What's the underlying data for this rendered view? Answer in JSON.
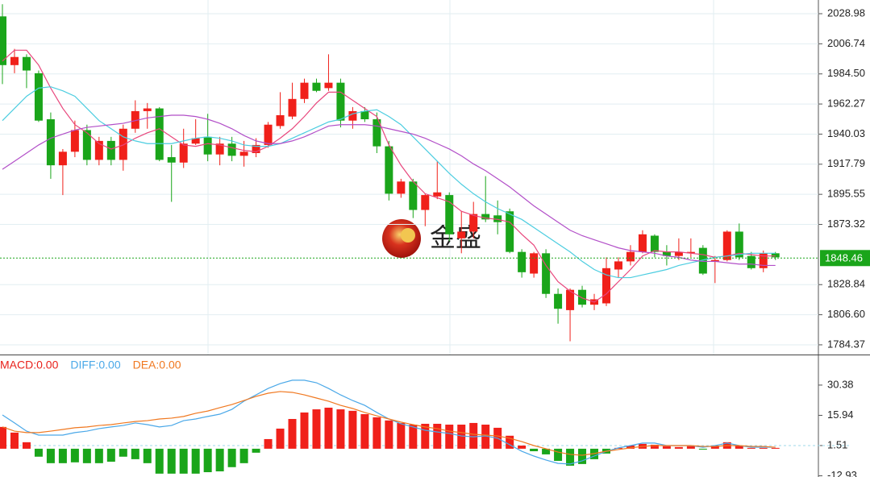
{
  "chart_data": [
    {
      "type": "candlestick",
      "up_color": "#f0201a",
      "down_color": "#1aa51a",
      "open": [
        2027,
        1991,
        1997,
        1985,
        1951,
        1917,
        1927,
        1943,
        1921,
        1935,
        1921,
        1944,
        1957,
        1959,
        1923,
        1919,
        1933,
        1938,
        1925,
        1933,
        1924,
        1926,
        1932,
        1946,
        1953,
        1966,
        1978,
        1974,
        1978,
        1950,
        1957,
        1951,
        1931,
        1896,
        1905,
        1884,
        1894,
        1895,
        1863,
        1868,
        1881,
        1880,
        1883,
        1853,
        1837,
        1852,
        1822,
        1810,
        1825,
        1814,
        1815,
        1840,
        1846,
        1853,
        1865,
        1853,
        1850,
        1852,
        1856,
        1846,
        1847,
        1868,
        1850,
        1841,
        1852
      ],
      "high": [
        2036,
        2003,
        1999,
        1987,
        1956,
        1929,
        1950,
        1947,
        1938,
        1938,
        1947,
        1965,
        1963,
        1960,
        1932,
        1944,
        1951,
        1955,
        1938,
        1938,
        1935,
        1937,
        1949,
        1971,
        1978,
        1981,
        1981,
        1999,
        1981,
        1960,
        1960,
        1956,
        1935,
        1907,
        1907,
        1896,
        1920,
        1897,
        1883,
        1890,
        1909,
        1891,
        1885,
        1855,
        1853,
        1855,
        1826,
        1826,
        1828,
        1822,
        1849,
        1849,
        1858,
        1869,
        1866,
        1858,
        1863,
        1863,
        1858,
        1850,
        1869,
        1874,
        1853,
        1854,
        1853
      ],
      "low": [
        1977,
        1985,
        1974,
        1949,
        1907,
        1895,
        1923,
        1917,
        1917,
        1917,
        1913,
        1941,
        1944,
        1920,
        1890,
        1915,
        1932,
        1920,
        1917,
        1920,
        1916,
        1923,
        1930,
        1944,
        1951,
        1963,
        1971,
        1972,
        1945,
        1944,
        1949,
        1926,
        1891,
        1893,
        1878,
        1872,
        1892,
        1861,
        1852,
        1863,
        1875,
        1866,
        1852,
        1834,
        1834,
        1819,
        1800,
        1787,
        1812,
        1810,
        1813,
        1834,
        1843,
        1852,
        1849,
        1843,
        1847,
        1849,
        1836,
        1830,
        1846,
        1847,
        1840,
        1838,
        1847
      ],
      "close": [
        1991,
        1997,
        1987,
        1950,
        1917,
        1927,
        1943,
        1921,
        1935,
        1921,
        1944,
        1957,
        1959,
        1921,
        1919,
        1933,
        1937,
        1925,
        1933,
        1924,
        1927,
        1932,
        1947,
        1954,
        1966,
        1978,
        1972,
        1978,
        1950,
        1957,
        1951,
        1931,
        1896,
        1905,
        1884,
        1895,
        1897,
        1866,
        1868,
        1881,
        1877,
        1875,
        1853,
        1838,
        1852,
        1822,
        1811,
        1825,
        1814,
        1818,
        1841,
        1846,
        1853,
        1866,
        1853,
        1850,
        1853,
        1853,
        1837,
        1847,
        1868,
        1849,
        1841,
        1852,
        1849
      ],
      "ma_lines": [
        {
          "color": "#e8467c",
          "values": [
            1994,
            2002,
            2002,
            1991,
            1974,
            1959,
            1947,
            1941,
            1933,
            1929,
            1932,
            1937,
            1941,
            1944,
            1938,
            1932,
            1931,
            1933,
            1932,
            1930,
            1928,
            1927,
            1931,
            1937,
            1944,
            1953,
            1963,
            1971,
            1971,
            1965,
            1959,
            1953,
            1932,
            1917,
            1905,
            1896,
            1893,
            1890,
            1883,
            1880,
            1878,
            1877,
            1875,
            1866,
            1858,
            1843,
            1831,
            1824,
            1819,
            1816,
            1822,
            1831,
            1840,
            1850,
            1854,
            1853,
            1853,
            1852,
            1851,
            1849,
            1850,
            1852,
            1851,
            1850,
            1850
          ]
        },
        {
          "color": "#4ccde0",
          "values": [
            1950,
            1959,
            1968,
            1974,
            1975,
            1972,
            1968,
            1959,
            1950,
            1944,
            1938,
            1935,
            1933,
            1933,
            1933,
            1935,
            1937,
            1938,
            1937,
            1935,
            1932,
            1931,
            1931,
            1933,
            1937,
            1941,
            1945,
            1949,
            1951,
            1955,
            1957,
            1958,
            1953,
            1947,
            1938,
            1929,
            1920,
            1911,
            1903,
            1896,
            1890,
            1885,
            1881,
            1877,
            1871,
            1865,
            1859,
            1853,
            1846,
            1840,
            1836,
            1834,
            1834,
            1836,
            1838,
            1840,
            1843,
            1845,
            1847,
            1849,
            1850,
            1851,
            1852,
            1852,
            1852
          ]
        },
        {
          "color": "#b24fc8",
          "values": [
            1914,
            1920,
            1926,
            1932,
            1937,
            1940,
            1943,
            1945,
            1946,
            1947,
            1948,
            1950,
            1952,
            1953,
            1954,
            1954,
            1953,
            1951,
            1948,
            1944,
            1939,
            1935,
            1933,
            1933,
            1935,
            1938,
            1942,
            1946,
            1947,
            1947,
            1947,
            1946,
            1944,
            1942,
            1940,
            1937,
            1933,
            1929,
            1924,
            1918,
            1913,
            1907,
            1901,
            1894,
            1887,
            1881,
            1875,
            1869,
            1865,
            1862,
            1859,
            1856,
            1854,
            1853,
            1852,
            1850,
            1849,
            1847,
            1846,
            1846,
            1845,
            1844,
            1844,
            1843,
            1843
          ]
        }
      ],
      "ylim": [
        1777.2,
        2039.1
      ],
      "yticks": [
        2028.98,
        2006.74,
        {
          "value": 1984.5,
          "label": "1984.50"
        },
        1962.27,
        1940.03,
        1917.79,
        1895.55,
        1873.32,
        1828.84,
        {
          "value": 1806.6,
          "label": "1806.60"
        },
        1784.37
      ],
      "grid": true,
      "last_price": {
        "value": 1848.46,
        "color": "#1aa51a"
      },
      "watermark": "金盛"
    },
    {
      "type": "macd",
      "legend": [
        {
          "text": "MACD:0.00",
          "color": "#e8201a"
        },
        {
          "text": "DIFF:0.00",
          "color": "#4aa8e8"
        },
        {
          "text": "DEA:0.00",
          "color": "#f07820"
        }
      ],
      "up_color": "#f0201a",
      "down_color": "#1aa51a",
      "histogram": [
        10.4,
        7.7,
        3.1,
        -3.8,
        -6.9,
        -6.9,
        -6.5,
        -6.9,
        -6.9,
        -6.2,
        -3.8,
        -5.0,
        -6.9,
        -11.9,
        -11.9,
        -11.9,
        -11.9,
        -11.2,
        -10.8,
        -8.8,
        -6.9,
        -1.9,
        4.6,
        9.6,
        14.2,
        17.3,
        18.8,
        19.6,
        18.8,
        18.1,
        16.5,
        15.0,
        13.5,
        12.3,
        11.5,
        11.9,
        11.9,
        11.5,
        11.5,
        12.3,
        11.5,
        10.0,
        6.2,
        1.5,
        -1.2,
        -2.7,
        -5.8,
        -8.1,
        -7.3,
        -5.0,
        -2.3,
        0.4,
        1.5,
        2.3,
        1.9,
        1.2,
        0.8,
        1.2,
        -0.4,
        1.5,
        3.1,
        1.5,
        0.4,
        0.4,
        0.4
      ],
      "diff": {
        "color": "#4aa8e8",
        "values": [
          16.1,
          12.3,
          8.4,
          6.5,
          6.5,
          6.5,
          7.7,
          8.4,
          9.6,
          10.4,
          11.1,
          12.3,
          11.5,
          10.4,
          11.1,
          13.4,
          14.2,
          15.4,
          16.5,
          18.8,
          22.7,
          25.7,
          28.8,
          31.1,
          32.7,
          32.7,
          31.5,
          28.8,
          25.7,
          23.0,
          20.7,
          17.3,
          14.2,
          11.9,
          10.4,
          8.8,
          8.0,
          7.3,
          6.1,
          5.7,
          6.1,
          5.0,
          1.9,
          -1.2,
          -3.5,
          -5.4,
          -7.0,
          -7.3,
          -5.8,
          -3.5,
          -1.2,
          0.4,
          1.5,
          2.7,
          2.7,
          1.5,
          1.5,
          1.5,
          0.7,
          1.5,
          2.7,
          1.5,
          0.7,
          0.7,
          0.7
        ]
      },
      "dea": {
        "color": "#f07820",
        "values": [
          10.4,
          8.4,
          7.7,
          7.7,
          8.4,
          9.2,
          10.0,
          10.4,
          11.1,
          11.5,
          12.3,
          13.0,
          13.4,
          14.2,
          14.6,
          15.4,
          16.9,
          18.0,
          19.6,
          21.1,
          23.0,
          25.0,
          26.5,
          27.3,
          26.9,
          25.7,
          24.2,
          22.7,
          20.7,
          19.2,
          17.3,
          15.7,
          14.2,
          12.7,
          11.5,
          10.4,
          9.6,
          8.4,
          7.7,
          6.9,
          6.5,
          6.1,
          5.0,
          3.4,
          1.5,
          0.0,
          -1.6,
          -2.7,
          -3.1,
          -2.3,
          -1.2,
          -0.4,
          0.4,
          1.1,
          1.5,
          1.5,
          1.5,
          1.5,
          1.1,
          1.1,
          1.5,
          1.5,
          1.1,
          1.1,
          0.7
        ]
      },
      "ylim": [
        -13.5,
        44.2
      ],
      "yticks": [
        30.38,
        15.94,
        1.51,
        -12.93
      ],
      "last_value": 1.51
    }
  ]
}
